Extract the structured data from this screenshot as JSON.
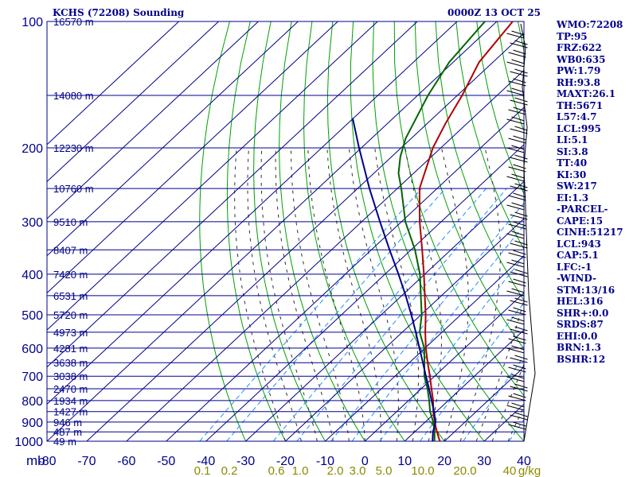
{
  "chart_data": {
    "type": "line",
    "title": "KCHS (72208) Sounding",
    "datetime": "0000Z 13 OCT 25",
    "x_axis": {
      "label": "",
      "ticks": [
        -80,
        -70,
        -60,
        -50,
        -40,
        -30,
        -20,
        -10,
        0,
        10,
        20,
        30,
        40
      ],
      "tick_labels": [
        "-80",
        "-70",
        "-60",
        "-50",
        "-40",
        "-30",
        "-20",
        "-10",
        "0",
        "10",
        "20",
        "30",
        "40"
      ],
      "range": [
        -80,
        40
      ]
    },
    "y_axis": {
      "label": "mb",
      "range": [
        1000,
        100
      ],
      "ticks": [
        100,
        200,
        300,
        400,
        500,
        600,
        700,
        800,
        900,
        1000
      ],
      "tick_labels": [
        "100",
        "200",
        "300",
        "400",
        "500",
        "600",
        "700",
        "800",
        "900",
        "1000"
      ],
      "minor_ticks": [
        150,
        250,
        350,
        450,
        550,
        650,
        750,
        850,
        950
      ]
    },
    "mixing_ratio_labels": [
      "0.1",
      "0.2",
      "0.6",
      "1.0",
      "2.0",
      "3.0",
      "5.0",
      "10.0",
      "20.0",
      "40",
      "g/kg"
    ],
    "height_labels": [
      {
        "pressure": 100,
        "label": "16570 m"
      },
      {
        "pressure": 150,
        "label": "14080 m"
      },
      {
        "pressure": 200,
        "label": "12230 m"
      },
      {
        "pressure": 250,
        "label": "10760 m"
      },
      {
        "pressure": 300,
        "label": "9510 m"
      },
      {
        "pressure": 350,
        "label": "8407 m"
      },
      {
        "pressure": 400,
        "label": "7420 m"
      },
      {
        "pressure": 450,
        "label": "6531 m"
      },
      {
        "pressure": 500,
        "label": "5720 m"
      },
      {
        "pressure": 550,
        "label": "4973 m"
      },
      {
        "pressure": 600,
        "label": "4281 m"
      },
      {
        "pressure": 650,
        "label": "3638 m"
      },
      {
        "pressure": 700,
        "label": "3038 m"
      },
      {
        "pressure": 750,
        "label": "2470 m"
      },
      {
        "pressure": 800,
        "label": "1934 m"
      },
      {
        "pressure": 850,
        "label": "1427 m"
      },
      {
        "pressure": 900,
        "label": "946 m"
      },
      {
        "pressure": 950,
        "label": "487 m"
      },
      {
        "pressure": 1000,
        "label": "49 m"
      }
    ],
    "series": [
      {
        "name": "Temperature",
        "color": "#b00000",
        "points": [
          [
            1000,
            18.9
          ],
          [
            990,
            18.2
          ],
          [
            950,
            15.6
          ],
          [
            925,
            14.0
          ],
          [
            900,
            12.4
          ],
          [
            850,
            9.2
          ],
          [
            800,
            6.2
          ],
          [
            750,
            2.6
          ],
          [
            700,
            -1.2
          ],
          [
            650,
            -5.4
          ],
          [
            600,
            -9.8
          ],
          [
            550,
            -14.2
          ],
          [
            500,
            -18.8
          ],
          [
            450,
            -24.2
          ],
          [
            400,
            -30.2
          ],
          [
            350,
            -37.2
          ],
          [
            300,
            -45.4
          ],
          [
            250,
            -54.4
          ],
          [
            200,
            -62.0
          ],
          [
            175,
            -65.4
          ],
          [
            150,
            -68.8
          ],
          [
            125,
            -73.5
          ],
          [
            100,
            -76.0
          ]
        ]
      },
      {
        "name": "Dewpoint",
        "color": "#006400",
        "points": [
          [
            1000,
            17.4
          ],
          [
            990,
            17.0
          ],
          [
            950,
            15.0
          ],
          [
            925,
            13.6
          ],
          [
            900,
            12.0
          ],
          [
            850,
            8.4
          ],
          [
            800,
            5.2
          ],
          [
            750,
            1.6
          ],
          [
            700,
            -2.6
          ],
          [
            650,
            -6.2
          ],
          [
            600,
            -10.2
          ],
          [
            550,
            -15.6
          ],
          [
            500,
            -19.8
          ],
          [
            450,
            -25.2
          ],
          [
            400,
            -31.2
          ],
          [
            350,
            -39.0
          ],
          [
            300,
            -49.0
          ],
          [
            250,
            -59.0
          ],
          [
            230,
            -63.8
          ],
          [
            210,
            -67.8
          ],
          [
            190,
            -71.4
          ],
          [
            150,
            -77.4
          ],
          [
            125,
            -81.0
          ],
          [
            100,
            -83.0
          ]
        ]
      },
      {
        "name": "Parcel",
        "color": "#00008b",
        "points": [
          [
            1000,
            17.0
          ],
          [
            950,
            14.6
          ],
          [
            900,
            12.6
          ],
          [
            850,
            9.4
          ],
          [
            800,
            5.8
          ],
          [
            750,
            2.0
          ],
          [
            700,
            -2.2
          ],
          [
            650,
            -6.6
          ],
          [
            600,
            -11.4
          ],
          [
            550,
            -16.6
          ],
          [
            500,
            -22.4
          ],
          [
            450,
            -29.0
          ],
          [
            400,
            -36.6
          ],
          [
            350,
            -45.4
          ],
          [
            300,
            -55.4
          ],
          [
            250,
            -67.0
          ],
          [
            200,
            -80.6
          ],
          [
            170,
            -90.2
          ]
        ]
      }
    ]
  },
  "stats": [
    "WMO:72208",
    "TP:95",
    "FRZ:622",
    "WB0:635",
    "PW:1.79",
    "RH:93.8",
    "MAXT:26.1",
    "TH:5671",
    "L57:4.7",
    "LCL:995",
    "LI:5.1",
    "SI:3.8",
    "TT:40",
    "KI:30",
    "SW:217",
    "EI:1.3",
    "-PARCEL-",
    "CAPE:15",
    "CINH:51217",
    "LCL:943",
    "CAP:5.1",
    "LFC:-1",
    "-WIND-",
    "STM:13/16",
    "HEL:316",
    "SHR+:0.0",
    "SRDS:87",
    "EHI:0.0",
    "BRN:1.3",
    "BSHR:12"
  ],
  "colors": {
    "grid": "#00008b",
    "dry_adiabat": "#00a000",
    "moist_adiabat": "#303030",
    "mixing_ratio": "#1e90ff",
    "mixing_label": "#8b8b00",
    "text": "#00008b"
  }
}
